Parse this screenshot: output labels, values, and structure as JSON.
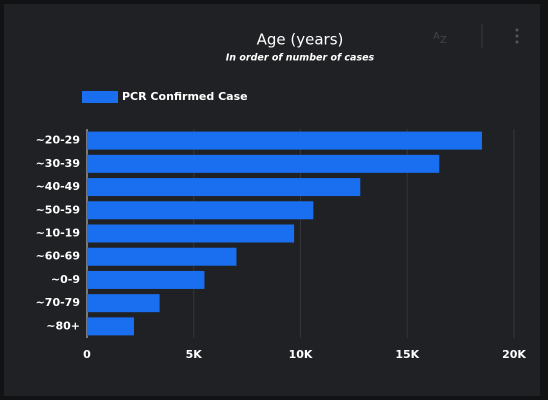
{
  "chart_data": {
    "type": "bar",
    "orientation": "horizontal",
    "title": "Age (years)",
    "subtitle": "In order of number of cases",
    "categories": [
      "~20-29",
      "~30-39",
      "~40-49",
      "~50-59",
      "~10-19",
      "~60-69",
      "~0-9",
      "~70-79",
      "~80+"
    ],
    "series": [
      {
        "name": "PCR Confirmed Case",
        "color": "#1a6ff0",
        "values": [
          18500,
          16500,
          12800,
          10600,
          9700,
          7000,
          5500,
          3400,
          2200
        ]
      }
    ],
    "xlim": [
      0,
      20000
    ],
    "xticks": [
      0,
      {
        "value": 5000,
        "label": "5K"
      },
      {
        "value": 10000,
        "label": "10K"
      },
      {
        "value": 15000,
        "label": "15K"
      },
      {
        "value": 20000,
        "label": "20K"
      }
    ],
    "grid": true,
    "legend": "top-left"
  }
}
